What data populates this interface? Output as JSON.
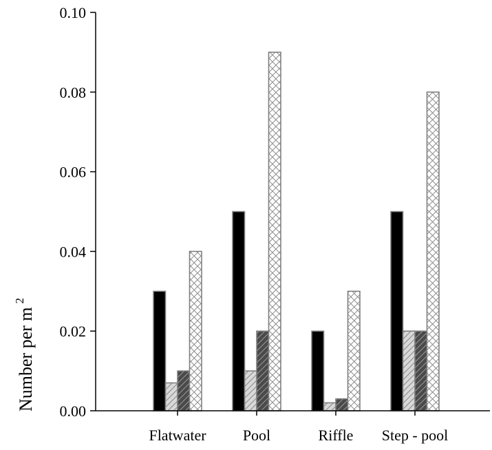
{
  "chart_data": {
    "type": "bar",
    "categories": [
      "Flatwater",
      "Pool",
      "Riffle",
      "Step - pool"
    ],
    "series": [
      {
        "values": [
          0.03,
          0.05,
          0.02,
          0.05
        ],
        "fill": "#000000",
        "pattern": "solid"
      },
      {
        "values": [
          0.007,
          0.01,
          0.002,
          0.02
        ],
        "fill": "#c8c8c8",
        "pattern": "diagonal-light"
      },
      {
        "values": [
          0.01,
          0.02,
          0.003,
          0.02
        ],
        "fill": "#6e6e6e",
        "pattern": "diagonal-dark"
      },
      {
        "values": [
          0.04,
          0.09,
          0.03,
          0.08
        ],
        "fill": "#e6e6e6",
        "pattern": "crosshatch"
      }
    ],
    "ylabel": "Number per m",
    "ylabel_superscript": "2",
    "ylim": [
      0,
      0.1
    ],
    "yticks": [
      "0.00",
      "0.02",
      "0.04",
      "0.06",
      "0.08",
      "0.10"
    ],
    "grid": false,
    "legend": "none",
    "colors": {
      "axis": "#000000",
      "bar_outline": "#808080"
    }
  }
}
